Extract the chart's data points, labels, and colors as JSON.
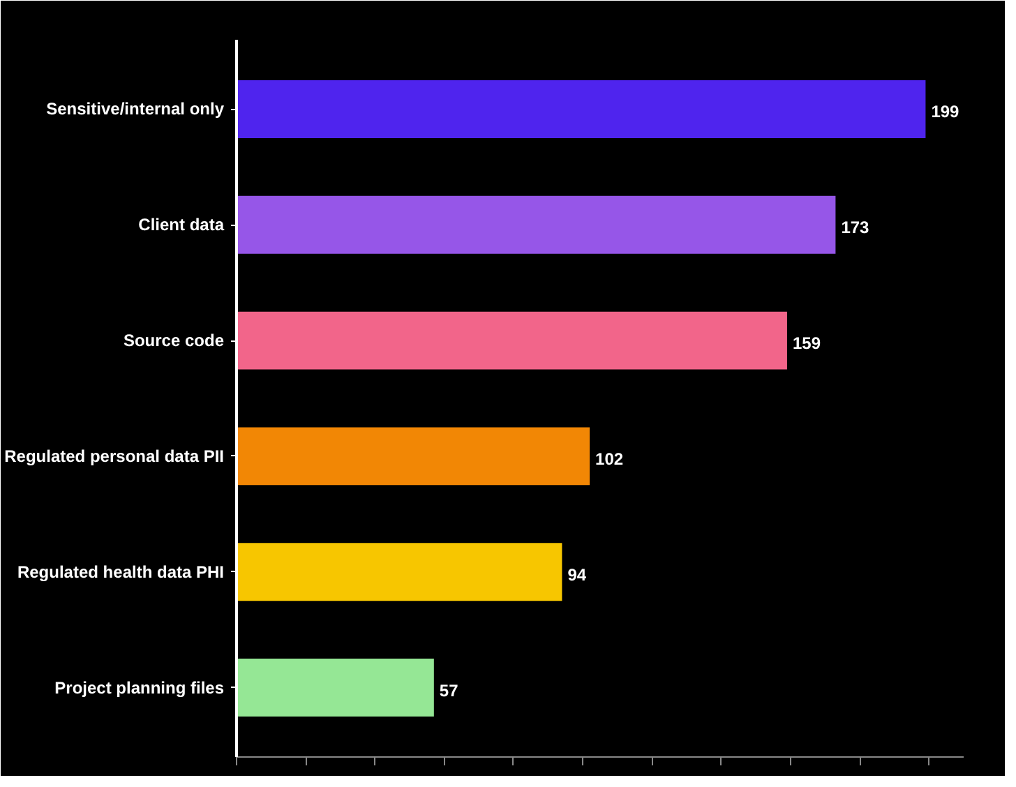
{
  "chart_data": {
    "type": "bar",
    "orientation": "horizontal",
    "categories": [
      "Sensitive/internal only",
      "Client data",
      "Source code",
      "Regulated personal data PII",
      "Regulated health data PHI",
      "Project planning files"
    ],
    "values": [
      199,
      173,
      159,
      102,
      94,
      57
    ],
    "colors": [
      "#4f24ee",
      "#9656e8",
      "#f2658a",
      "#f28705",
      "#f7c600",
      "#95e795"
    ],
    "xlim": [
      0,
      210
    ],
    "xticks": [
      {
        "value": 0,
        "label": null
      },
      {
        "value": 20,
        "label": null
      },
      {
        "value": 40,
        "label": null
      },
      {
        "value": 60,
        "label": null
      },
      {
        "value": 80,
        "label": null
      },
      {
        "value": 100,
        "label": null
      },
      {
        "value": 120,
        "label": null
      },
      {
        "value": 140,
        "label": null
      },
      {
        "value": 160,
        "label": null
      },
      {
        "value": 180,
        "label": null
      },
      {
        "value": 200,
        "label": null
      }
    ],
    "tick_labels": "y",
    "data_labels": true,
    "grid": false
  }
}
